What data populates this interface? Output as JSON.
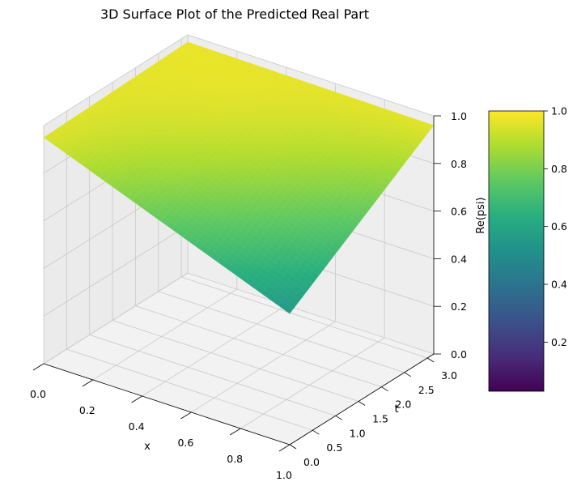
{
  "chart_data": {
    "type": "surface3d",
    "title": "3D Surface Plot of the Predicted Real Part",
    "xlabel": "x",
    "ylabel": "t",
    "zlabel": "Re(psi)",
    "xlim": [
      0,
      1
    ],
    "ylim": [
      0,
      3.14
    ],
    "zlim": [
      0,
      1
    ],
    "x_ticks": [
      "0.0",
      "0.2",
      "0.4",
      "0.6",
      "0.8",
      "1.0"
    ],
    "t_ticks": [
      "0.0",
      "0.5",
      "1.0",
      "1.5",
      "2.0",
      "2.5",
      "3.0"
    ],
    "z_ticks": [
      "0.0",
      "0.2",
      "0.4",
      "0.6",
      "0.8",
      "1.0"
    ],
    "surface_corners": [
      {
        "x": 0,
        "t": 0,
        "z": 0.95
      },
      {
        "x": 1,
        "t": 0,
        "z": 0.55
      },
      {
        "x": 0,
        "t": 3.14,
        "z": 0.97
      },
      {
        "x": 1,
        "t": 3.14,
        "z": 0.96
      }
    ],
    "colormap": "viridis",
    "colorbar": {
      "range": [
        0.03,
        1.0
      ],
      "ticks": [
        "0.2",
        "0.4",
        "0.6",
        "0.8",
        "1.0"
      ],
      "tick_values": [
        0.2,
        0.4,
        0.6,
        0.8,
        1.0
      ]
    },
    "grid": true
  }
}
